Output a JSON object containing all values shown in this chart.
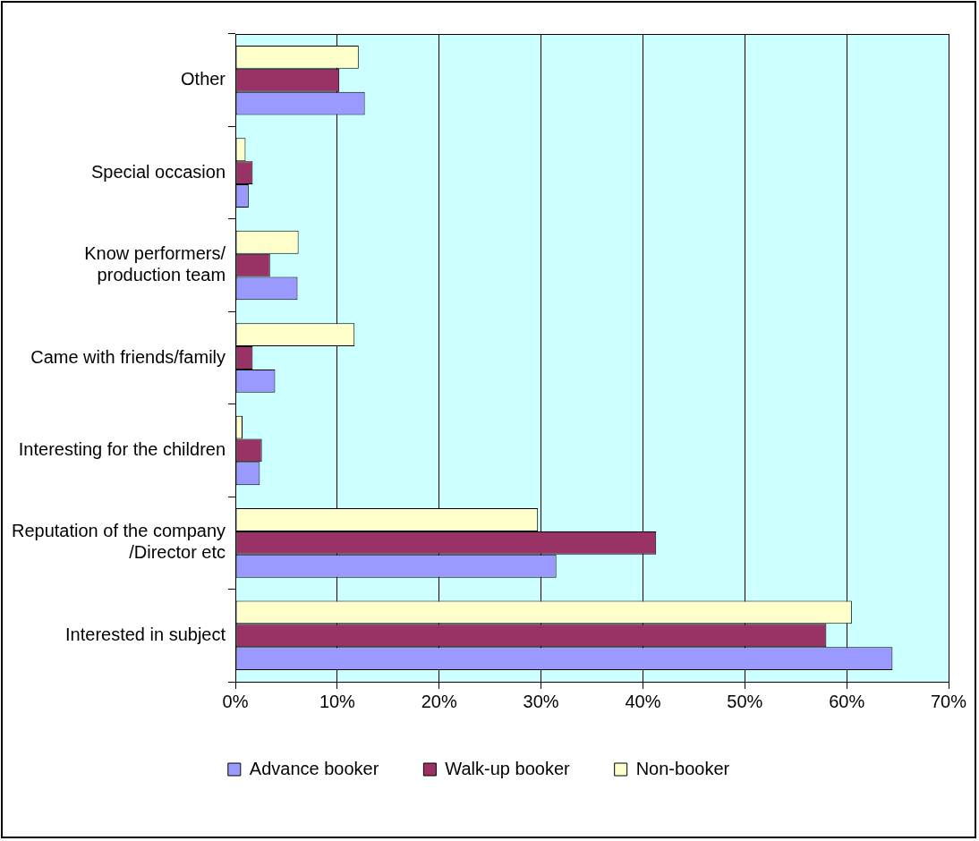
{
  "chart_data": {
    "type": "bar",
    "orientation": "horizontal",
    "categories": [
      "Other",
      "Special occasion",
      "Know performers/\nproduction team",
      "Came with friends/family",
      "Interesting for the children",
      "Reputation of the company\n/Director etc",
      "Interested in subject"
    ],
    "series": [
      {
        "name": "Advance booker",
        "color": "#9999ff",
        "values": [
          12.7,
          1.3,
          6.1,
          3.9,
          2.4,
          31.5,
          64.5
        ]
      },
      {
        "name": "Walk-up booker",
        "color": "#993366",
        "values": [
          10.2,
          1.7,
          3.4,
          1.7,
          2.6,
          41.3,
          58.0
        ]
      },
      {
        "name": "Non-booker",
        "color": "#ffffcc",
        "values": [
          12.1,
          1.0,
          6.2,
          11.7,
          0.7,
          29.7,
          60.5
        ]
      }
    ],
    "xlim": [
      0,
      70
    ],
    "xticks": [
      {
        "value": 0,
        "label": "0%"
      },
      {
        "value": 10,
        "label": "10%"
      },
      {
        "value": 20,
        "label": "20%"
      },
      {
        "value": 30,
        "label": "30%"
      },
      {
        "value": 40,
        "label": "40%"
      },
      {
        "value": 50,
        "label": "50%"
      },
      {
        "value": 60,
        "label": "60%"
      },
      {
        "value": 70,
        "label": "70%"
      }
    ],
    "grid": "x",
    "legend": "bottom"
  }
}
